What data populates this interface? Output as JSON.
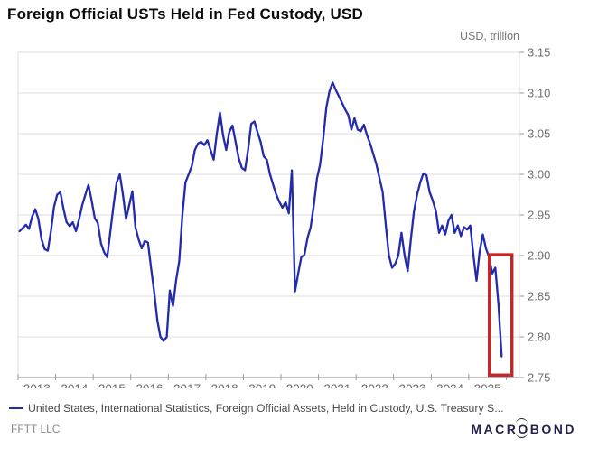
{
  "header": {
    "title": "Foreign Official USTs Held in Fed Custody, USD",
    "units_label": "USD, trillion"
  },
  "legend": {
    "label": "United States, International Statistics, Foreign Official Assets, Held in Custody, U.S. Treasury S..."
  },
  "footer": {
    "source": "FFTT LLC",
    "logo": {
      "left": "MACR",
      "o": "O",
      "right": "BOND"
    }
  },
  "colors": {
    "line": "#232bac",
    "highlight_box": "#c32727",
    "grid": "#dcdcdc",
    "axis": "#9a9a9a",
    "tick_text": "#6f6f6f",
    "title_text": "#0b0b0b",
    "legend_text": "#4a4a4a",
    "source_text": "#8a8a8a",
    "logo_text": "#23234e"
  },
  "chart_data": {
    "type": "line",
    "title": "Foreign Official USTs Held in Fed Custody, USD",
    "ylabel": "USD, trillion",
    "xlabel": "",
    "ylim": [
      2.75,
      3.15
    ],
    "y_ticks": [
      3.15,
      3.1,
      3.05,
      3.0,
      2.95,
      2.9,
      2.85,
      2.8,
      2.75
    ],
    "x_axis_years": [
      2013,
      2014,
      2015,
      2016,
      2017,
      2018,
      2019,
      2020,
      2021,
      2022,
      2023,
      2024,
      2025
    ],
    "x_domain": [
      2013.0,
      2026.35
    ],
    "grid": "horizontal",
    "legend_position": "bottom",
    "series": [
      {
        "name": "United States, International Statistics, Foreign Official Assets, Held in Custody, U.S. Treasury S...",
        "color": "#232bac",
        "start_year": 2013,
        "frequency": "monthly",
        "values": [
          2.93,
          2.934,
          2.938,
          2.933,
          2.948,
          2.957,
          2.945,
          2.92,
          2.908,
          2.906,
          2.93,
          2.96,
          2.975,
          2.978,
          2.958,
          2.941,
          2.936,
          2.941,
          2.93,
          2.945,
          2.962,
          2.975,
          2.987,
          2.968,
          2.946,
          2.94,
          2.915,
          2.904,
          2.898,
          2.93,
          2.962,
          2.99,
          3.0,
          2.975,
          2.945,
          2.962,
          2.979,
          2.935,
          2.92,
          2.909,
          2.918,
          2.916,
          2.885,
          2.855,
          2.82,
          2.8,
          2.795,
          2.8,
          2.857,
          2.838,
          2.87,
          2.893,
          2.95,
          2.99,
          3.0,
          3.01,
          3.03,
          3.038,
          3.04,
          3.036,
          3.042,
          3.03,
          3.018,
          3.05,
          3.076,
          3.048,
          3.03,
          3.052,
          3.06,
          3.04,
          3.02,
          3.008,
          3.005,
          3.03,
          3.062,
          3.065,
          3.052,
          3.04,
          3.022,
          3.018,
          3.0,
          2.987,
          2.975,
          2.966,
          2.959,
          2.966,
          2.952,
          3.005,
          2.856,
          2.878,
          2.898,
          2.901,
          2.922,
          2.935,
          2.962,
          2.995,
          3.012,
          3.044,
          3.082,
          3.102,
          3.113,
          3.104,
          3.096,
          3.088,
          3.08,
          3.073,
          3.055,
          3.069,
          3.055,
          3.053,
          3.061,
          3.048,
          3.038,
          3.025,
          3.012,
          2.995,
          2.978,
          2.937,
          2.9,
          2.885,
          2.89,
          2.9,
          2.928,
          2.9,
          2.881,
          2.92,
          2.954,
          2.975,
          2.99,
          3.001,
          2.999,
          2.978,
          2.968,
          2.955,
          2.928,
          2.937,
          2.926,
          2.943,
          2.95,
          2.928,
          2.937,
          2.924,
          2.935,
          2.932,
          2.937,
          2.9,
          2.869,
          2.905,
          2.926,
          2.909,
          2.898,
          2.878,
          2.885,
          2.84,
          2.776
        ]
      }
    ],
    "highlight_box": {
      "x1": 2025.55,
      "x2": 2026.15,
      "y_top": 2.901,
      "y_bottom": 2.753,
      "color": "#c32727"
    }
  }
}
